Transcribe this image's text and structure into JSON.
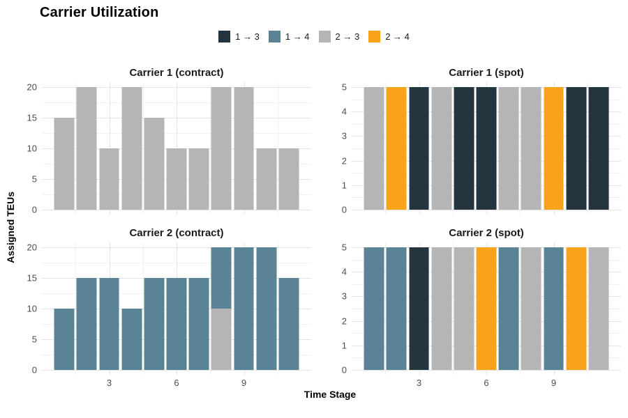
{
  "chart_data": {
    "type": "bar",
    "stacked": true,
    "title": "Carrier Utilization",
    "xlabel": "Time Stage",
    "ylabel": "Assigned TEUs",
    "grid": true,
    "legend_position": "top",
    "legend_items": [
      {
        "label": "1 → 3",
        "color": "#243540"
      },
      {
        "label": "1 → 4",
        "color": "#5A8496"
      },
      {
        "label": "2 → 3",
        "color": "#B5B5B5"
      },
      {
        "label": "2 → 4",
        "color": "#F9A21B"
      }
    ],
    "x_range": [
      1,
      11
    ],
    "x_axis_ticks": [
      3,
      6,
      9
    ],
    "facets": [
      {
        "title": "Carrier 1 (contract)",
        "ylim": [
          0,
          20
        ],
        "yticks": [
          0,
          5,
          10,
          15,
          20
        ],
        "show_x_tick_labels": false,
        "bars": [
          {
            "x": 1,
            "segments": [
              {
                "flow": "2 → 3",
                "teus": 15
              }
            ]
          },
          {
            "x": 2,
            "segments": [
              {
                "flow": "2 → 3",
                "teus": 20
              }
            ]
          },
          {
            "x": 3,
            "segments": [
              {
                "flow": "2 → 3",
                "teus": 10
              }
            ]
          },
          {
            "x": 4,
            "segments": [
              {
                "flow": "2 → 3",
                "teus": 20
              }
            ]
          },
          {
            "x": 5,
            "segments": [
              {
                "flow": "2 → 3",
                "teus": 15
              }
            ]
          },
          {
            "x": 6,
            "segments": [
              {
                "flow": "2 → 3",
                "teus": 10
              }
            ]
          },
          {
            "x": 7,
            "segments": [
              {
                "flow": "2 → 3",
                "teus": 10
              }
            ]
          },
          {
            "x": 8,
            "segments": [
              {
                "flow": "2 → 3",
                "teus": 20
              }
            ]
          },
          {
            "x": 9,
            "segments": [
              {
                "flow": "2 → 3",
                "teus": 20
              }
            ]
          },
          {
            "x": 10,
            "segments": [
              {
                "flow": "2 → 3",
                "teus": 10
              }
            ]
          },
          {
            "x": 11,
            "segments": [
              {
                "flow": "2 → 3",
                "teus": 10
              }
            ]
          }
        ]
      },
      {
        "title": "Carrier 1 (spot)",
        "ylim": [
          0,
          5
        ],
        "yticks": [
          0,
          1,
          2,
          3,
          4,
          5
        ],
        "show_x_tick_labels": false,
        "bars": [
          {
            "x": 1,
            "segments": [
              {
                "flow": "2 → 3",
                "teus": 5
              }
            ]
          },
          {
            "x": 2,
            "segments": [
              {
                "flow": "2 → 4",
                "teus": 5
              }
            ]
          },
          {
            "x": 3,
            "segments": [
              {
                "flow": "1 → 3",
                "teus": 5
              }
            ]
          },
          {
            "x": 4,
            "segments": [
              {
                "flow": "2 → 3",
                "teus": 5
              }
            ]
          },
          {
            "x": 5,
            "segments": [
              {
                "flow": "1 → 3",
                "teus": 5
              }
            ]
          },
          {
            "x": 6,
            "segments": [
              {
                "flow": "1 → 3",
                "teus": 5
              }
            ]
          },
          {
            "x": 7,
            "segments": [
              {
                "flow": "2 → 3",
                "teus": 5
              }
            ]
          },
          {
            "x": 8,
            "segments": [
              {
                "flow": "2 → 3",
                "teus": 5
              }
            ]
          },
          {
            "x": 9,
            "segments": [
              {
                "flow": "2 → 4",
                "teus": 5
              }
            ]
          },
          {
            "x": 10,
            "segments": [
              {
                "flow": "1 → 3",
                "teus": 5
              }
            ]
          },
          {
            "x": 11,
            "segments": [
              {
                "flow": "1 → 3",
                "teus": 5
              }
            ]
          }
        ]
      },
      {
        "title": "Carrier 2 (contract)",
        "ylim": [
          0,
          20
        ],
        "yticks": [
          0,
          5,
          10,
          15,
          20
        ],
        "show_x_tick_labels": true,
        "bars": [
          {
            "x": 1,
            "segments": [
              {
                "flow": "1 → 4",
                "teus": 10
              }
            ]
          },
          {
            "x": 2,
            "segments": [
              {
                "flow": "1 → 4",
                "teus": 15
              }
            ]
          },
          {
            "x": 3,
            "segments": [
              {
                "flow": "1 → 4",
                "teus": 15
              }
            ]
          },
          {
            "x": 4,
            "segments": [
              {
                "flow": "1 → 4",
                "teus": 10
              }
            ]
          },
          {
            "x": 5,
            "segments": [
              {
                "flow": "1 → 4",
                "teus": 15
              }
            ]
          },
          {
            "x": 6,
            "segments": [
              {
                "flow": "1 → 4",
                "teus": 15
              }
            ]
          },
          {
            "x": 7,
            "segments": [
              {
                "flow": "1 → 4",
                "teus": 15
              }
            ]
          },
          {
            "x": 8,
            "segments": [
              {
                "flow": "2 → 3",
                "teus": 10
              },
              {
                "flow": "1 → 4",
                "teus": 10
              }
            ]
          },
          {
            "x": 9,
            "segments": [
              {
                "flow": "1 → 4",
                "teus": 20
              }
            ]
          },
          {
            "x": 10,
            "segments": [
              {
                "flow": "1 → 4",
                "teus": 20
              }
            ]
          },
          {
            "x": 11,
            "segments": [
              {
                "flow": "1 → 4",
                "teus": 15
              }
            ]
          }
        ]
      },
      {
        "title": "Carrier 2 (spot)",
        "ylim": [
          0,
          5
        ],
        "yticks": [
          0,
          1,
          2,
          3,
          4,
          5
        ],
        "show_x_tick_labels": true,
        "bars": [
          {
            "x": 1,
            "segments": [
              {
                "flow": "1 → 4",
                "teus": 5
              }
            ]
          },
          {
            "x": 2,
            "segments": [
              {
                "flow": "1 → 4",
                "teus": 5
              }
            ]
          },
          {
            "x": 3,
            "segments": [
              {
                "flow": "1 → 3",
                "teus": 5
              }
            ]
          },
          {
            "x": 4,
            "segments": [
              {
                "flow": "2 → 3",
                "teus": 5
              }
            ]
          },
          {
            "x": 5,
            "segments": [
              {
                "flow": "2 → 3",
                "teus": 5
              }
            ]
          },
          {
            "x": 6,
            "segments": [
              {
                "flow": "2 → 4",
                "teus": 5
              }
            ]
          },
          {
            "x": 7,
            "segments": [
              {
                "flow": "1 → 4",
                "teus": 5
              }
            ]
          },
          {
            "x": 8,
            "segments": [
              {
                "flow": "2 → 3",
                "teus": 5
              }
            ]
          },
          {
            "x": 9,
            "segments": [
              {
                "flow": "1 → 4",
                "teus": 5
              }
            ]
          },
          {
            "x": 10,
            "segments": [
              {
                "flow": "2 → 4",
                "teus": 5
              }
            ]
          },
          {
            "x": 11,
            "segments": [
              {
                "flow": "2 → 3",
                "teus": 5
              }
            ]
          }
        ]
      }
    ]
  }
}
